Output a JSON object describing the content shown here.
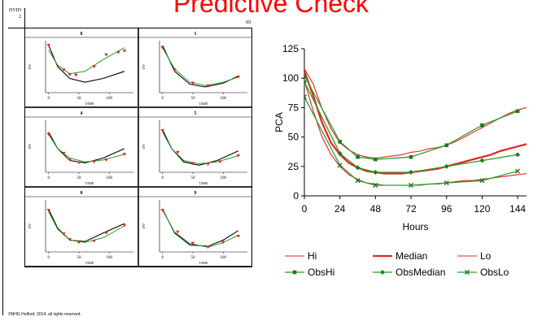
{
  "slide": {
    "title": "Predictive Check",
    "footer": "©NHG Holford, 2014, all rights reserved.",
    "dvid_label": "DVID",
    "dvid_value": "2",
    "id_label": "ID"
  },
  "chart_data": [
    {
      "type": "line",
      "title": "",
      "xlabel": "Hours",
      "ylabel": "PCA",
      "xlim": [
        0,
        150
      ],
      "ylim": [
        0,
        125
      ],
      "xticks": [
        0,
        24,
        48,
        72,
        96,
        120,
        144
      ],
      "yticks": [
        0,
        25,
        50,
        75,
        100,
        125
      ],
      "legend_position": "bottom",
      "colors": {
        "predicted": "#e8231f",
        "observed": "#2a9c2e",
        "marker": "#1e7a1e"
      },
      "series": [
        {
          "name": "Hi",
          "kind": "predicted",
          "style": "thin",
          "x": [
            0,
            6,
            12,
            18,
            24,
            30,
            36,
            42,
            48,
            54,
            60,
            66,
            72,
            78,
            84,
            90,
            96,
            102,
            108,
            114,
            120,
            126,
            132,
            138,
            144,
            150
          ],
          "y": [
            108,
            95,
            74,
            57,
            45,
            39,
            35,
            33,
            32,
            33,
            34,
            35,
            37,
            38,
            40,
            41,
            43,
            46,
            50,
            54,
            58,
            62,
            66,
            70,
            73,
            75
          ]
        },
        {
          "name": "Median",
          "kind": "predicted",
          "style": "thick",
          "x": [
            0,
            6,
            12,
            18,
            24,
            30,
            36,
            42,
            48,
            54,
            60,
            66,
            72,
            78,
            84,
            90,
            96,
            102,
            108,
            114,
            120,
            126,
            132,
            138,
            144,
            150
          ],
          "y": [
            106,
            85,
            62,
            45,
            35,
            28,
            24,
            21,
            20,
            19,
            19,
            19,
            20,
            21,
            22,
            23,
            25,
            27,
            29,
            31,
            33,
            35,
            38,
            40,
            42,
            44
          ]
        },
        {
          "name": "Lo",
          "kind": "predicted",
          "style": "thin",
          "x": [
            0,
            6,
            12,
            18,
            24,
            30,
            36,
            42,
            48,
            54,
            60,
            66,
            72,
            78,
            84,
            90,
            96,
            102,
            108,
            114,
            120,
            126,
            132,
            138,
            144,
            150
          ],
          "y": [
            98,
            72,
            50,
            35,
            25,
            18,
            14,
            11,
            10,
            9,
            9,
            9,
            9,
            9,
            10,
            10,
            11,
            12,
            13,
            13,
            14,
            15,
            16,
            17,
            18,
            19
          ]
        },
        {
          "name": "ObsHi",
          "kind": "observed",
          "marker": "square",
          "x": [
            0,
            24,
            36,
            48,
            72,
            96,
            120,
            144
          ],
          "y": [
            102,
            46,
            33,
            31,
            33,
            43,
            60,
            72
          ]
        },
        {
          "name": "ObsMedian",
          "kind": "observed",
          "marker": "diamond",
          "x": [
            0,
            24,
            36,
            48,
            72,
            96,
            120,
            144
          ],
          "y": [
            97,
            36,
            24,
            20,
            20,
            25,
            30,
            35
          ]
        },
        {
          "name": "ObsLo",
          "kind": "observed",
          "marker": "x",
          "x": [
            0,
            24,
            36,
            48,
            72,
            96,
            120,
            144
          ],
          "y": [
            84,
            26,
            13,
            9,
            9,
            11,
            13,
            21
          ]
        }
      ]
    },
    {
      "type": "line",
      "title": "",
      "xlabel": "TIME",
      "ylabel": "DV",
      "xlim": [
        -5,
        140
      ],
      "xticks": [
        0,
        50,
        100
      ],
      "panels": [
        {
          "label": "0",
          "pred": [
            [
              0,
              100
            ],
            [
              15,
              55
            ],
            [
              35,
              30
            ],
            [
              60,
              22
            ],
            [
              90,
              30
            ],
            [
              125,
              45
            ]
          ],
          "fit": [
            [
              0,
              90
            ],
            [
              15,
              58
            ],
            [
              35,
              40
            ],
            [
              60,
              45
            ],
            [
              90,
              70
            ],
            [
              125,
              95
            ]
          ],
          "obs_x": [
            0,
            25,
            35,
            45,
            75,
            95,
            115,
            125
          ],
          "obs_y": [
            100,
            48,
            38,
            37,
            55,
            80,
            85,
            88
          ]
        },
        {
          "label": "1",
          "pred": [
            [
              0,
              100
            ],
            [
              20,
              45
            ],
            [
              45,
              18
            ],
            [
              70,
              12
            ],
            [
              100,
              20
            ],
            [
              125,
              35
            ]
          ],
          "fit": [
            [
              0,
              95
            ],
            [
              20,
              50
            ],
            [
              45,
              22
            ],
            [
              70,
              15
            ],
            [
              100,
              22
            ],
            [
              125,
              33
            ]
          ],
          "obs_x": [
            0,
            20,
            50,
            75,
            125
          ],
          "obs_y": [
            95,
            48,
            20,
            14,
            33
          ]
        },
        {
          "label": "4",
          "pred": [
            [
              0,
              85
            ],
            [
              15,
              50
            ],
            [
              35,
              25
            ],
            [
              60,
              20
            ],
            [
              90,
              30
            ],
            [
              125,
              50
            ]
          ],
          "fit": [
            [
              0,
              80
            ],
            [
              15,
              50
            ],
            [
              35,
              30
            ],
            [
              60,
              22
            ],
            [
              90,
              26
            ],
            [
              125,
              38
            ]
          ],
          "obs_x": [
            0,
            25,
            35,
            50,
            75,
            95,
            125
          ],
          "obs_y": [
            80,
            40,
            26,
            20,
            22,
            26,
            38
          ]
        },
        {
          "label": "5",
          "pred": [
            [
              0,
              90
            ],
            [
              15,
              50
            ],
            [
              35,
              22
            ],
            [
              60,
              15
            ],
            [
              90,
              25
            ],
            [
              125,
              45
            ]
          ],
          "fit": [
            [
              0,
              85
            ],
            [
              15,
              50
            ],
            [
              35,
              25
            ],
            [
              60,
              18
            ],
            [
              90,
              22
            ],
            [
              125,
              35
            ]
          ],
          "obs_x": [
            0,
            25,
            50,
            75,
            95,
            125
          ],
          "obs_y": [
            88,
            42,
            18,
            17,
            22,
            35
          ]
        },
        {
          "label": "8",
          "pred": [
            [
              0,
              90
            ],
            [
              15,
              50
            ],
            [
              35,
              25
            ],
            [
              60,
              22
            ],
            [
              90,
              40
            ],
            [
              125,
              60
            ]
          ],
          "fit": [
            [
              0,
              85
            ],
            [
              15,
              48
            ],
            [
              35,
              25
            ],
            [
              60,
              20
            ],
            [
              90,
              30
            ],
            [
              125,
              55
            ]
          ],
          "obs_x": [
            0,
            25,
            35,
            50,
            75,
            95,
            125
          ],
          "obs_y": [
            88,
            38,
            26,
            20,
            23,
            40,
            56
          ]
        },
        {
          "label": "9",
          "pred": [
            [
              0,
              90
            ],
            [
              20,
              40
            ],
            [
              45,
              15
            ],
            [
              75,
              12
            ],
            [
              100,
              25
            ],
            [
              125,
              45
            ]
          ],
          "fit": [
            [
              0,
              88
            ],
            [
              20,
              42
            ],
            [
              45,
              18
            ],
            [
              75,
              10
            ],
            [
              100,
              20
            ],
            [
              125,
              35
            ]
          ],
          "obs_x": [
            0,
            25,
            50,
            75,
            100,
            125
          ],
          "obs_y": [
            88,
            42,
            18,
            10,
            20,
            33
          ]
        }
      ]
    }
  ]
}
